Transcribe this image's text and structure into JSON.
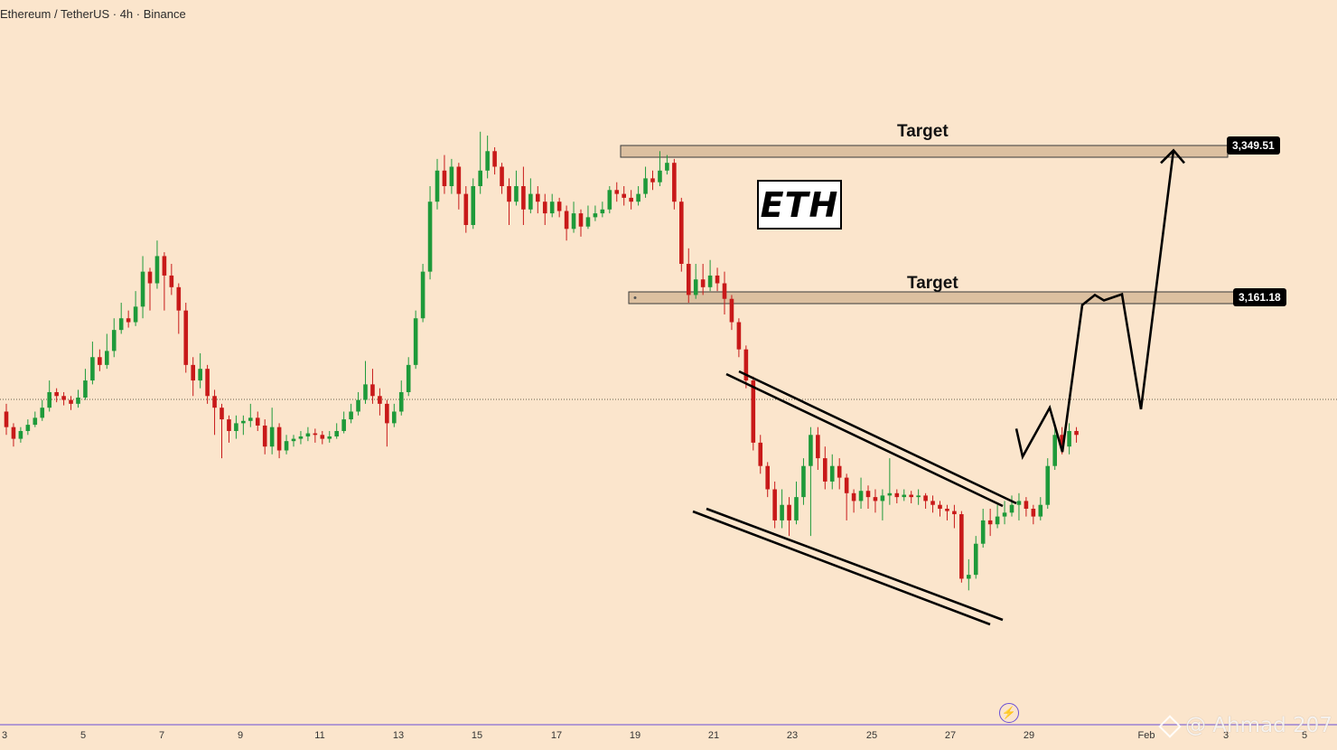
{
  "header": {
    "symbol_title": "Ethereum / TetherUS · 4h · Binance"
  },
  "badge": {
    "text": "ETH"
  },
  "annotations": {
    "target_upper_label": "Target",
    "target_lower_label": "Target",
    "watermark": "@ Ahmad 207"
  },
  "price_tags": {
    "upper": "3,349.51",
    "lower": "3,161.18"
  },
  "x_axis_ticks": [
    "3",
    "5",
    "7",
    "9",
    "11",
    "13",
    "15",
    "17",
    "19",
    "21",
    "23",
    "25",
    "27",
    "29",
    "Feb",
    "3",
    "5"
  ],
  "icons": {
    "bolt": "lightning-bolt-icon",
    "watermark_logo": "diamond-logo-icon"
  },
  "colors": {
    "background": "#fbe5cc",
    "bull": "#1e9a3a",
    "bear": "#c81919",
    "target_zone": "#dcc0a0",
    "price_tag_bg": "#000000",
    "projection": "#000000"
  },
  "chart_data": {
    "type": "candlestick",
    "title": "Ethereum / TetherUS · 4h · Binance",
    "timeframe": "4h",
    "x_ticks": [
      "3",
      "5",
      "7",
      "9",
      "11",
      "13",
      "15",
      "17",
      "19",
      "21",
      "23",
      "25",
      "27",
      "29",
      "Feb",
      "3",
      "5"
    ],
    "target_zones": [
      {
        "label": "Target",
        "price": 3349.51
      },
      {
        "label": "Target",
        "price": 3161.18
      }
    ],
    "candles": [
      [
        3020,
        3000,
        3030,
        2990
      ],
      [
        3000,
        2985,
        3005,
        2975
      ],
      [
        2985,
        2995,
        3000,
        2980
      ],
      [
        2995,
        3003,
        3010,
        2990
      ],
      [
        3003,
        3012,
        3020,
        3000
      ],
      [
        3012,
        3025,
        3035,
        3008
      ],
      [
        3025,
        3045,
        3060,
        3020
      ],
      [
        3045,
        3040,
        3050,
        3032
      ],
      [
        3040,
        3035,
        3045,
        3028
      ],
      [
        3035,
        3030,
        3040,
        3022
      ],
      [
        3030,
        3038,
        3048,
        3025
      ],
      [
        3038,
        3060,
        3075,
        3035
      ],
      [
        3060,
        3090,
        3110,
        3055
      ],
      [
        3090,
        3080,
        3100,
        3072
      ],
      [
        3080,
        3098,
        3120,
        3075
      ],
      [
        3098,
        3125,
        3140,
        3090
      ],
      [
        3125,
        3140,
        3160,
        3120
      ],
      [
        3140,
        3135,
        3150,
        3128
      ],
      [
        3135,
        3155,
        3175,
        3130
      ],
      [
        3155,
        3200,
        3220,
        3140
      ],
      [
        3200,
        3185,
        3205,
        3150
      ],
      [
        3185,
        3220,
        3240,
        3178
      ],
      [
        3220,
        3195,
        3225,
        3150
      ],
      [
        3195,
        3180,
        3210,
        3170
      ],
      [
        3180,
        3150,
        3185,
        3120
      ],
      [
        3150,
        3080,
        3160,
        3070
      ],
      [
        3080,
        3060,
        3090,
        3040
      ],
      [
        3060,
        3075,
        3095,
        3050
      ],
      [
        3075,
        3040,
        3080,
        3030
      ],
      [
        3040,
        3025,
        3048,
        2990
      ],
      [
        3025,
        3010,
        3030,
        2960
      ],
      [
        3010,
        2995,
        3015,
        2980
      ],
      [
        2995,
        3005,
        3015,
        2985
      ],
      [
        3005,
        3008,
        3015,
        2990
      ],
      [
        3008,
        3012,
        3030,
        3000
      ],
      [
        3012,
        3002,
        3020,
        2995
      ],
      [
        3002,
        2975,
        3010,
        2965
      ],
      [
        2975,
        3000,
        3025,
        2965
      ],
      [
        3000,
        2970,
        3005,
        2960
      ],
      [
        2970,
        2982,
        2990,
        2965
      ],
      [
        2982,
        2985,
        2990,
        2975
      ],
      [
        2985,
        2988,
        2995,
        2978
      ],
      [
        2988,
        2992,
        3000,
        2982
      ],
      [
        2992,
        2990,
        2998,
        2980
      ],
      [
        2990,
        2985,
        2995,
        2978
      ],
      [
        2985,
        2988,
        2995,
        2980
      ],
      [
        2988,
        2995,
        3005,
        2985
      ],
      [
        2995,
        3010,
        3020,
        2992
      ],
      [
        3010,
        3020,
        3030,
        3005
      ],
      [
        3020,
        3035,
        3045,
        3015
      ],
      [
        3035,
        3055,
        3085,
        3030
      ],
      [
        3055,
        3040,
        3075,
        3030
      ],
      [
        3040,
        3030,
        3050,
        3015
      ],
      [
        3030,
        3005,
        3035,
        2975
      ],
      [
        3005,
        3020,
        3030,
        3000
      ],
      [
        3020,
        3045,
        3060,
        3015
      ],
      [
        3045,
        3080,
        3090,
        3040
      ],
      [
        3080,
        3140,
        3150,
        3075
      ],
      [
        3140,
        3200,
        3210,
        3135
      ],
      [
        3200,
        3290,
        3310,
        3190
      ],
      [
        3290,
        3330,
        3345,
        3280
      ],
      [
        3330,
        3310,
        3350,
        3300
      ],
      [
        3310,
        3335,
        3345,
        3300
      ],
      [
        3335,
        3300,
        3340,
        3280
      ],
      [
        3300,
        3260,
        3310,
        3250
      ],
      [
        3260,
        3310,
        3320,
        3255
      ],
      [
        3310,
        3330,
        3380,
        3300
      ],
      [
        3330,
        3355,
        3375,
        3320
      ],
      [
        3355,
        3335,
        3360,
        3325
      ],
      [
        3335,
        3310,
        3340,
        3300
      ],
      [
        3310,
        3290,
        3320,
        3260
      ],
      [
        3290,
        3310,
        3330,
        3285
      ],
      [
        3310,
        3280,
        3335,
        3260
      ],
      [
        3280,
        3300,
        3320,
        3275
      ],
      [
        3300,
        3290,
        3310,
        3275
      ],
      [
        3290,
        3275,
        3300,
        3260
      ],
      [
        3275,
        3290,
        3300,
        3270
      ],
      [
        3290,
        3278,
        3295,
        3270
      ],
      [
        3278,
        3255,
        3285,
        3240
      ],
      [
        3255,
        3275,
        3290,
        3250
      ],
      [
        3275,
        3258,
        3280,
        3245
      ],
      [
        3258,
        3270,
        3285,
        3255
      ],
      [
        3270,
        3275,
        3285,
        3265
      ],
      [
        3275,
        3280,
        3290,
        3270
      ],
      [
        3280,
        3305,
        3310,
        3275
      ],
      [
        3305,
        3300,
        3315,
        3290
      ],
      [
        3300,
        3295,
        3310,
        3285
      ],
      [
        3295,
        3290,
        3305,
        3280
      ],
      [
        3290,
        3300,
        3310,
        3285
      ],
      [
        3300,
        3320,
        3335,
        3295
      ],
      [
        3320,
        3315,
        3330,
        3305
      ],
      [
        3315,
        3330,
        3355,
        3310
      ],
      [
        3330,
        3340,
        3350,
        3325
      ],
      [
        3340,
        3290,
        3345,
        3280
      ],
      [
        3290,
        3210,
        3295,
        3200
      ],
      [
        3210,
        3170,
        3230,
        3160
      ],
      [
        3170,
        3190,
        3210,
        3165
      ],
      [
        3190,
        3180,
        3210,
        3170
      ],
      [
        3180,
        3195,
        3215,
        3175
      ],
      [
        3195,
        3185,
        3205,
        3175
      ],
      [
        3185,
        3165,
        3200,
        3145
      ],
      [
        3165,
        3135,
        3170,
        3125
      ],
      [
        3135,
        3100,
        3140,
        3090
      ],
      [
        3100,
        3060,
        3105,
        3050
      ],
      [
        3060,
        2980,
        3065,
        2970
      ],
      [
        2980,
        2950,
        2990,
        2940
      ],
      [
        2950,
        2920,
        2955,
        2910
      ],
      [
        2920,
        2880,
        2930,
        2870
      ],
      [
        2880,
        2900,
        2920,
        2870
      ],
      [
        2900,
        2880,
        2910,
        2860
      ],
      [
        2880,
        2910,
        2930,
        2875
      ],
      [
        2910,
        2950,
        2960,
        2900
      ],
      [
        2950,
        2990,
        3000,
        2860
      ],
      [
        2990,
        2960,
        3000,
        2945
      ],
      [
        2960,
        2930,
        2975,
        2920
      ],
      [
        2930,
        2950,
        2965,
        2920
      ],
      [
        2950,
        2935,
        2960,
        2920
      ],
      [
        2935,
        2915,
        2940,
        2880
      ],
      [
        2915,
        2905,
        2920,
        2890
      ],
      [
        2905,
        2918,
        2935,
        2895
      ],
      [
        2918,
        2910,
        2925,
        2895
      ],
      [
        2910,
        2905,
        2920,
        2890
      ],
      [
        2905,
        2912,
        2920,
        2880
      ],
      [
        2912,
        2915,
        2960,
        2900
      ],
      [
        2915,
        2910,
        2920,
        2902
      ],
      [
        2910,
        2913,
        2920,
        2905
      ],
      [
        2913,
        2910,
        2918,
        2902
      ],
      [
        2910,
        2912,
        2920,
        2900
      ],
      [
        2912,
        2905,
        2915,
        2895
      ],
      [
        2905,
        2900,
        2912,
        2890
      ],
      [
        2900,
        2895,
        2905,
        2885
      ],
      [
        2895,
        2892,
        2900,
        2880
      ],
      [
        2892,
        2888,
        2900,
        2870
      ],
      [
        2888,
        2805,
        2892,
        2800
      ],
      [
        2805,
        2810,
        2830,
        2790
      ],
      [
        2810,
        2850,
        2860,
        2805
      ],
      [
        2850,
        2880,
        2895,
        2845
      ],
      [
        2880,
        2875,
        2895,
        2860
      ],
      [
        2875,
        2885,
        2900,
        2870
      ],
      [
        2885,
        2890,
        2905,
        2875
      ],
      [
        2890,
        2900,
        2912,
        2885
      ],
      [
        2900,
        2905,
        2915,
        2880
      ],
      [
        2905,
        2895,
        2910,
        2885
      ],
      [
        2895,
        2885,
        2900,
        2875
      ],
      [
        2885,
        2900,
        2910,
        2880
      ],
      [
        2900,
        2950,
        2960,
        2895
      ],
      [
        2950,
        2990,
        3000,
        2945
      ],
      [
        2990,
        2975,
        3000,
        2965
      ],
      [
        2975,
        2995,
        3005,
        2965
      ],
      [
        2995,
        2990,
        3000,
        2980
      ]
    ],
    "projection_path_prices": [
      2998,
      2962,
      3025,
      2968,
      3157,
      3170,
      3163,
      3171,
      3023,
      3356
    ]
  }
}
